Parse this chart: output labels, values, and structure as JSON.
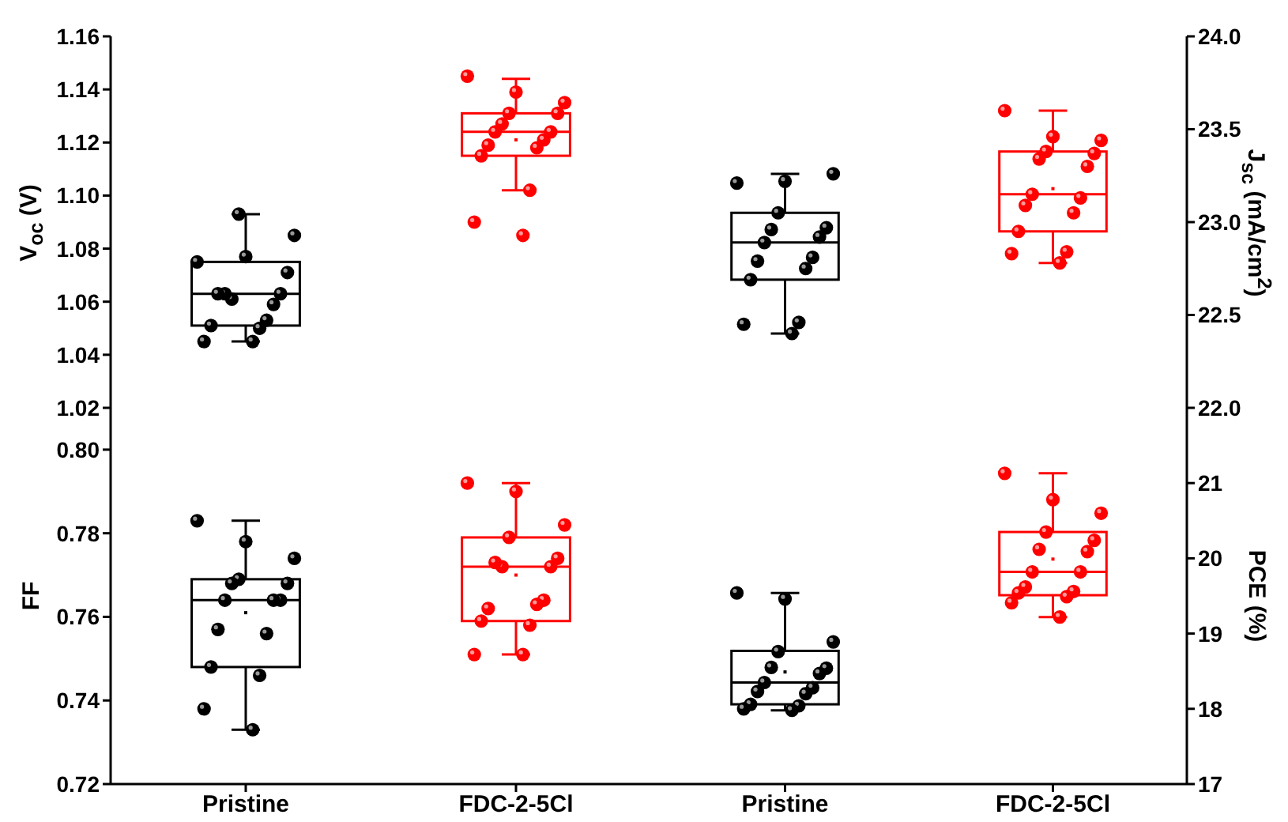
{
  "chart_data": [
    {
      "type": "box",
      "categories": [
        "Pristine",
        "FDC-2-5Cl"
      ],
      "ylabel": "V$_{oc}$ (V)",
      "ylim": [
        1.02,
        1.16
      ],
      "yticks": [
        1.02,
        1.04,
        1.06,
        1.08,
        {
          "value": 1.1,
          "label": "1.10"
        },
        1.12,
        1.14,
        1.16
      ],
      "tick_labels": "y",
      "colors": [
        "#000000",
        "#ff0000"
      ],
      "boxes": [
        {
          "low": 1.045,
          "q1": 1.051,
          "median": 1.063,
          "q3": 1.075,
          "high": 1.093
        },
        {
          "low": 1.102,
          "q1": 1.115,
          "median": 1.124,
          "q3": 1.131,
          "high": 1.144,
          "mean": 1.121
        }
      ],
      "series": [
        {
          "type": "scatter",
          "color": "#000000",
          "x": [
            "Pristine",
            "Pristine",
            "Pristine",
            "Pristine",
            "Pristine",
            "Pristine",
            "Pristine",
            "Pristine",
            "Pristine",
            "Pristine",
            "Pristine",
            "Pristine",
            "Pristine",
            "Pristine",
            "Pristine"
          ],
          "values": [
            1.075,
            1.077,
            1.085,
            1.093,
            1.071,
            1.061,
            1.063,
            1.063,
            1.059,
            1.063,
            1.053,
            1.051,
            1.05,
            1.045,
            1.045
          ]
        },
        {
          "type": "scatter",
          "color": "#ff0000",
          "x": [
            "FDC-2-5Cl",
            "FDC-2-5Cl",
            "FDC-2-5Cl",
            "FDC-2-5Cl",
            "FDC-2-5Cl",
            "FDC-2-5Cl",
            "FDC-2-5Cl",
            "FDC-2-5Cl",
            "FDC-2-5Cl",
            "FDC-2-5Cl",
            "FDC-2-5Cl",
            "FDC-2-5Cl",
            "FDC-2-5Cl",
            "FDC-2-5Cl",
            "FDC-2-5Cl"
          ],
          "values": [
            1.145,
            1.139,
            1.135,
            1.131,
            1.131,
            1.127,
            1.124,
            1.124,
            1.121,
            1.119,
            1.118,
            1.115,
            1.102,
            1.09,
            1.085
          ]
        }
      ]
    },
    {
      "type": "box",
      "categories": [
        "Pristine",
        "FDC-2-5Cl"
      ],
      "ylabel": "J$_{sc}$ (mA/cm$^{2}$)",
      "ylim": [
        22,
        24
      ],
      "yticks": [
        {
          "value": 22,
          "label": "22.0"
        },
        22.5,
        {
          "value": 23,
          "label": "23.0"
        },
        23.5,
        {
          "value": 24,
          "label": "24.0"
        }
      ],
      "tick_labels": "y",
      "colors": [
        "#000000",
        "#ff0000"
      ],
      "boxes": [
        {
          "low": 22.4,
          "q1": 22.69,
          "median": 22.89,
          "q3": 23.05,
          "high": 23.26
        },
        {
          "low": 22.78,
          "q1": 22.95,
          "median": 23.15,
          "q3": 23.38,
          "high": 23.6,
          "mean": 23.18
        }
      ],
      "series": [
        {
          "type": "scatter",
          "color": "#000000",
          "x": [
            "Pristine",
            "Pristine",
            "Pristine",
            "Pristine",
            "Pristine",
            "Pristine",
            "Pristine",
            "Pristine",
            "Pristine",
            "Pristine",
            "Pristine",
            "Pristine",
            "Pristine",
            "Pristine",
            "Pristine"
          ],
          "values": [
            23.21,
            23.22,
            23.26,
            23.05,
            22.97,
            22.96,
            22.92,
            22.89,
            22.81,
            22.79,
            22.75,
            22.69,
            22.46,
            22.45,
            22.4
          ]
        },
        {
          "type": "scatter",
          "color": "#ff0000",
          "x": [
            "FDC-2-5Cl",
            "FDC-2-5Cl",
            "FDC-2-5Cl",
            "FDC-2-5Cl",
            "FDC-2-5Cl",
            "FDC-2-5Cl",
            "FDC-2-5Cl",
            "FDC-2-5Cl",
            "FDC-2-5Cl",
            "FDC-2-5Cl",
            "FDC-2-5Cl",
            "FDC-2-5Cl",
            "FDC-2-5Cl",
            "FDC-2-5Cl",
            "FDC-2-5Cl"
          ],
          "values": [
            23.6,
            23.46,
            23.44,
            23.38,
            23.37,
            23.34,
            23.3,
            23.15,
            23.13,
            23.09,
            23.05,
            22.95,
            22.84,
            22.83,
            22.78
          ]
        }
      ]
    },
    {
      "type": "box",
      "categories": [
        "Pristine",
        "FDC-2-5Cl"
      ],
      "ylabel": "FF",
      "ylim": [
        0.72,
        0.81
      ],
      "yticks": [
        0.72,
        0.74,
        0.76,
        0.78,
        {
          "value": 0.8,
          "label": "0.80"
        }
      ],
      "colors": [
        "#000000",
        "#ff0000"
      ],
      "boxes": [
        {
          "low": 0.733,
          "q1": 0.748,
          "median": 0.764,
          "q3": 0.769,
          "high": 0.783,
          "mean": 0.761
        },
        {
          "low": 0.751,
          "q1": 0.759,
          "median": 0.772,
          "q3": 0.779,
          "high": 0.792,
          "mean": 0.77
        }
      ],
      "series": [
        {
          "type": "scatter",
          "color": "#000000",
          "x": [
            "Pristine",
            "Pristine",
            "Pristine",
            "Pristine",
            "Pristine",
            "Pristine",
            "Pristine",
            "Pristine",
            "Pristine",
            "Pristine",
            "Pristine",
            "Pristine",
            "Pristine",
            "Pristine",
            "Pristine"
          ],
          "values": [
            0.783,
            0.778,
            0.774,
            0.769,
            0.768,
            0.768,
            0.764,
            0.764,
            0.764,
            0.757,
            0.756,
            0.748,
            0.746,
            0.738,
            0.733
          ]
        },
        {
          "type": "scatter",
          "color": "#ff0000",
          "x": [
            "FDC-2-5Cl",
            "FDC-2-5Cl",
            "FDC-2-5Cl",
            "FDC-2-5Cl",
            "FDC-2-5Cl",
            "FDC-2-5Cl",
            "FDC-2-5Cl",
            "FDC-2-5Cl",
            "FDC-2-5Cl",
            "FDC-2-5Cl",
            "FDC-2-5Cl",
            "FDC-2-5Cl",
            "FDC-2-5Cl",
            "FDC-2-5Cl",
            "FDC-2-5Cl"
          ],
          "values": [
            0.792,
            0.79,
            0.782,
            0.779,
            0.774,
            0.772,
            0.772,
            0.773,
            0.764,
            0.762,
            0.763,
            0.759,
            0.758,
            0.751,
            0.751
          ]
        }
      ]
    },
    {
      "type": "box",
      "categories": [
        "Pristine",
        "FDC-2-5Cl"
      ],
      "ylabel": "PCE (%)",
      "ylim": [
        17,
        22
      ],
      "yticks": [
        17,
        18,
        19,
        20,
        21
      ],
      "colors": [
        "#000000",
        "#ff0000"
      ],
      "boxes": [
        {
          "low": 17.98,
          "q1": 18.06,
          "median": 18.35,
          "q3": 18.77,
          "high": 19.54,
          "mean": 18.49
        },
        {
          "low": 19.22,
          "q1": 19.51,
          "median": 19.82,
          "q3": 20.35,
          "high": 21.13,
          "mean": 19.99
        }
      ],
      "series": [
        {
          "type": "scatter",
          "color": "#000000",
          "x": [
            "Pristine",
            "Pristine",
            "Pristine",
            "Pristine",
            "Pristine",
            "Pristine",
            "Pristine",
            "Pristine",
            "Pristine",
            "Pristine",
            "Pristine",
            "Pristine",
            "Pristine",
            "Pristine",
            "Pristine"
          ],
          "values": [
            19.54,
            19.46,
            18.89,
            18.76,
            18.54,
            18.55,
            18.47,
            18.35,
            18.28,
            18.23,
            18.2,
            18.06,
            18.04,
            18.0,
            17.98
          ]
        },
        {
          "type": "scatter",
          "color": "#ff0000",
          "x": [
            "FDC-2-5Cl",
            "FDC-2-5Cl",
            "FDC-2-5Cl",
            "FDC-2-5Cl",
            "FDC-2-5Cl",
            "FDC-2-5Cl",
            "FDC-2-5Cl",
            "FDC-2-5Cl",
            "FDC-2-5Cl",
            "FDC-2-5Cl",
            "FDC-2-5Cl",
            "FDC-2-5Cl",
            "FDC-2-5Cl",
            "FDC-2-5Cl",
            "FDC-2-5Cl"
          ],
          "values": [
            21.13,
            20.78,
            20.6,
            20.35,
            20.24,
            20.12,
            20.09,
            19.82,
            19.82,
            19.62,
            19.56,
            19.54,
            19.49,
            19.41,
            19.22
          ]
        }
      ]
    }
  ]
}
